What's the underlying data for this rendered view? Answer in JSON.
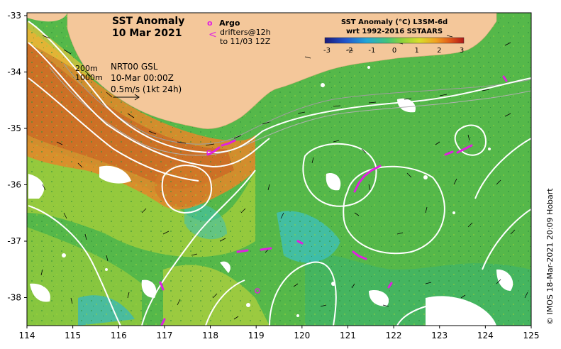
{
  "title": {
    "line1": "SST Anomaly",
    "line2": "10 Mar 2021"
  },
  "legend": {
    "argo_symbol": "o",
    "argo_label": "Argo",
    "drifter_symbol": "<",
    "drifter_label_line1": "drifters@12h",
    "drifter_label_line2": "to 11/03 12Z"
  },
  "contours": {
    "line1": "200m",
    "line2": "1000m"
  },
  "nrt": {
    "line1": "NRT00 GSL",
    "line2": "10-Mar 00:00Z",
    "line3": "0.5m/s (1kt 24h)"
  },
  "colorbar": {
    "title_line1": "SST Anomaly (°C) L3SM-6d",
    "title_line2": "wrt 1992-2016 SSTAARS",
    "ticks": [
      "-3",
      "-2",
      "-1",
      "0",
      "1",
      "2",
      "3"
    ],
    "colors": [
      "#1a1a7a",
      "#2255cc",
      "#22a6d8",
      "#44c47a",
      "#8bd13c",
      "#d8dd2a",
      "#f0a020",
      "#e05a1a",
      "#b01818"
    ]
  },
  "axes": {
    "x_ticks": [
      "114",
      "115",
      "116",
      "117",
      "118",
      "119",
      "120",
      "121",
      "122",
      "123",
      "124",
      "125"
    ],
    "y_ticks": [
      "-33",
      "-34",
      "-35",
      "-36",
      "-37",
      "-38"
    ]
  },
  "credit": "© IMOS 18-Mar-2021 20:09 Hobart",
  "colors": {
    "land": "#f4c79a",
    "ocean_base": "#55b84a",
    "warm": "#e0882a",
    "contour": "#ffffff",
    "drifter": "#e020e0"
  }
}
